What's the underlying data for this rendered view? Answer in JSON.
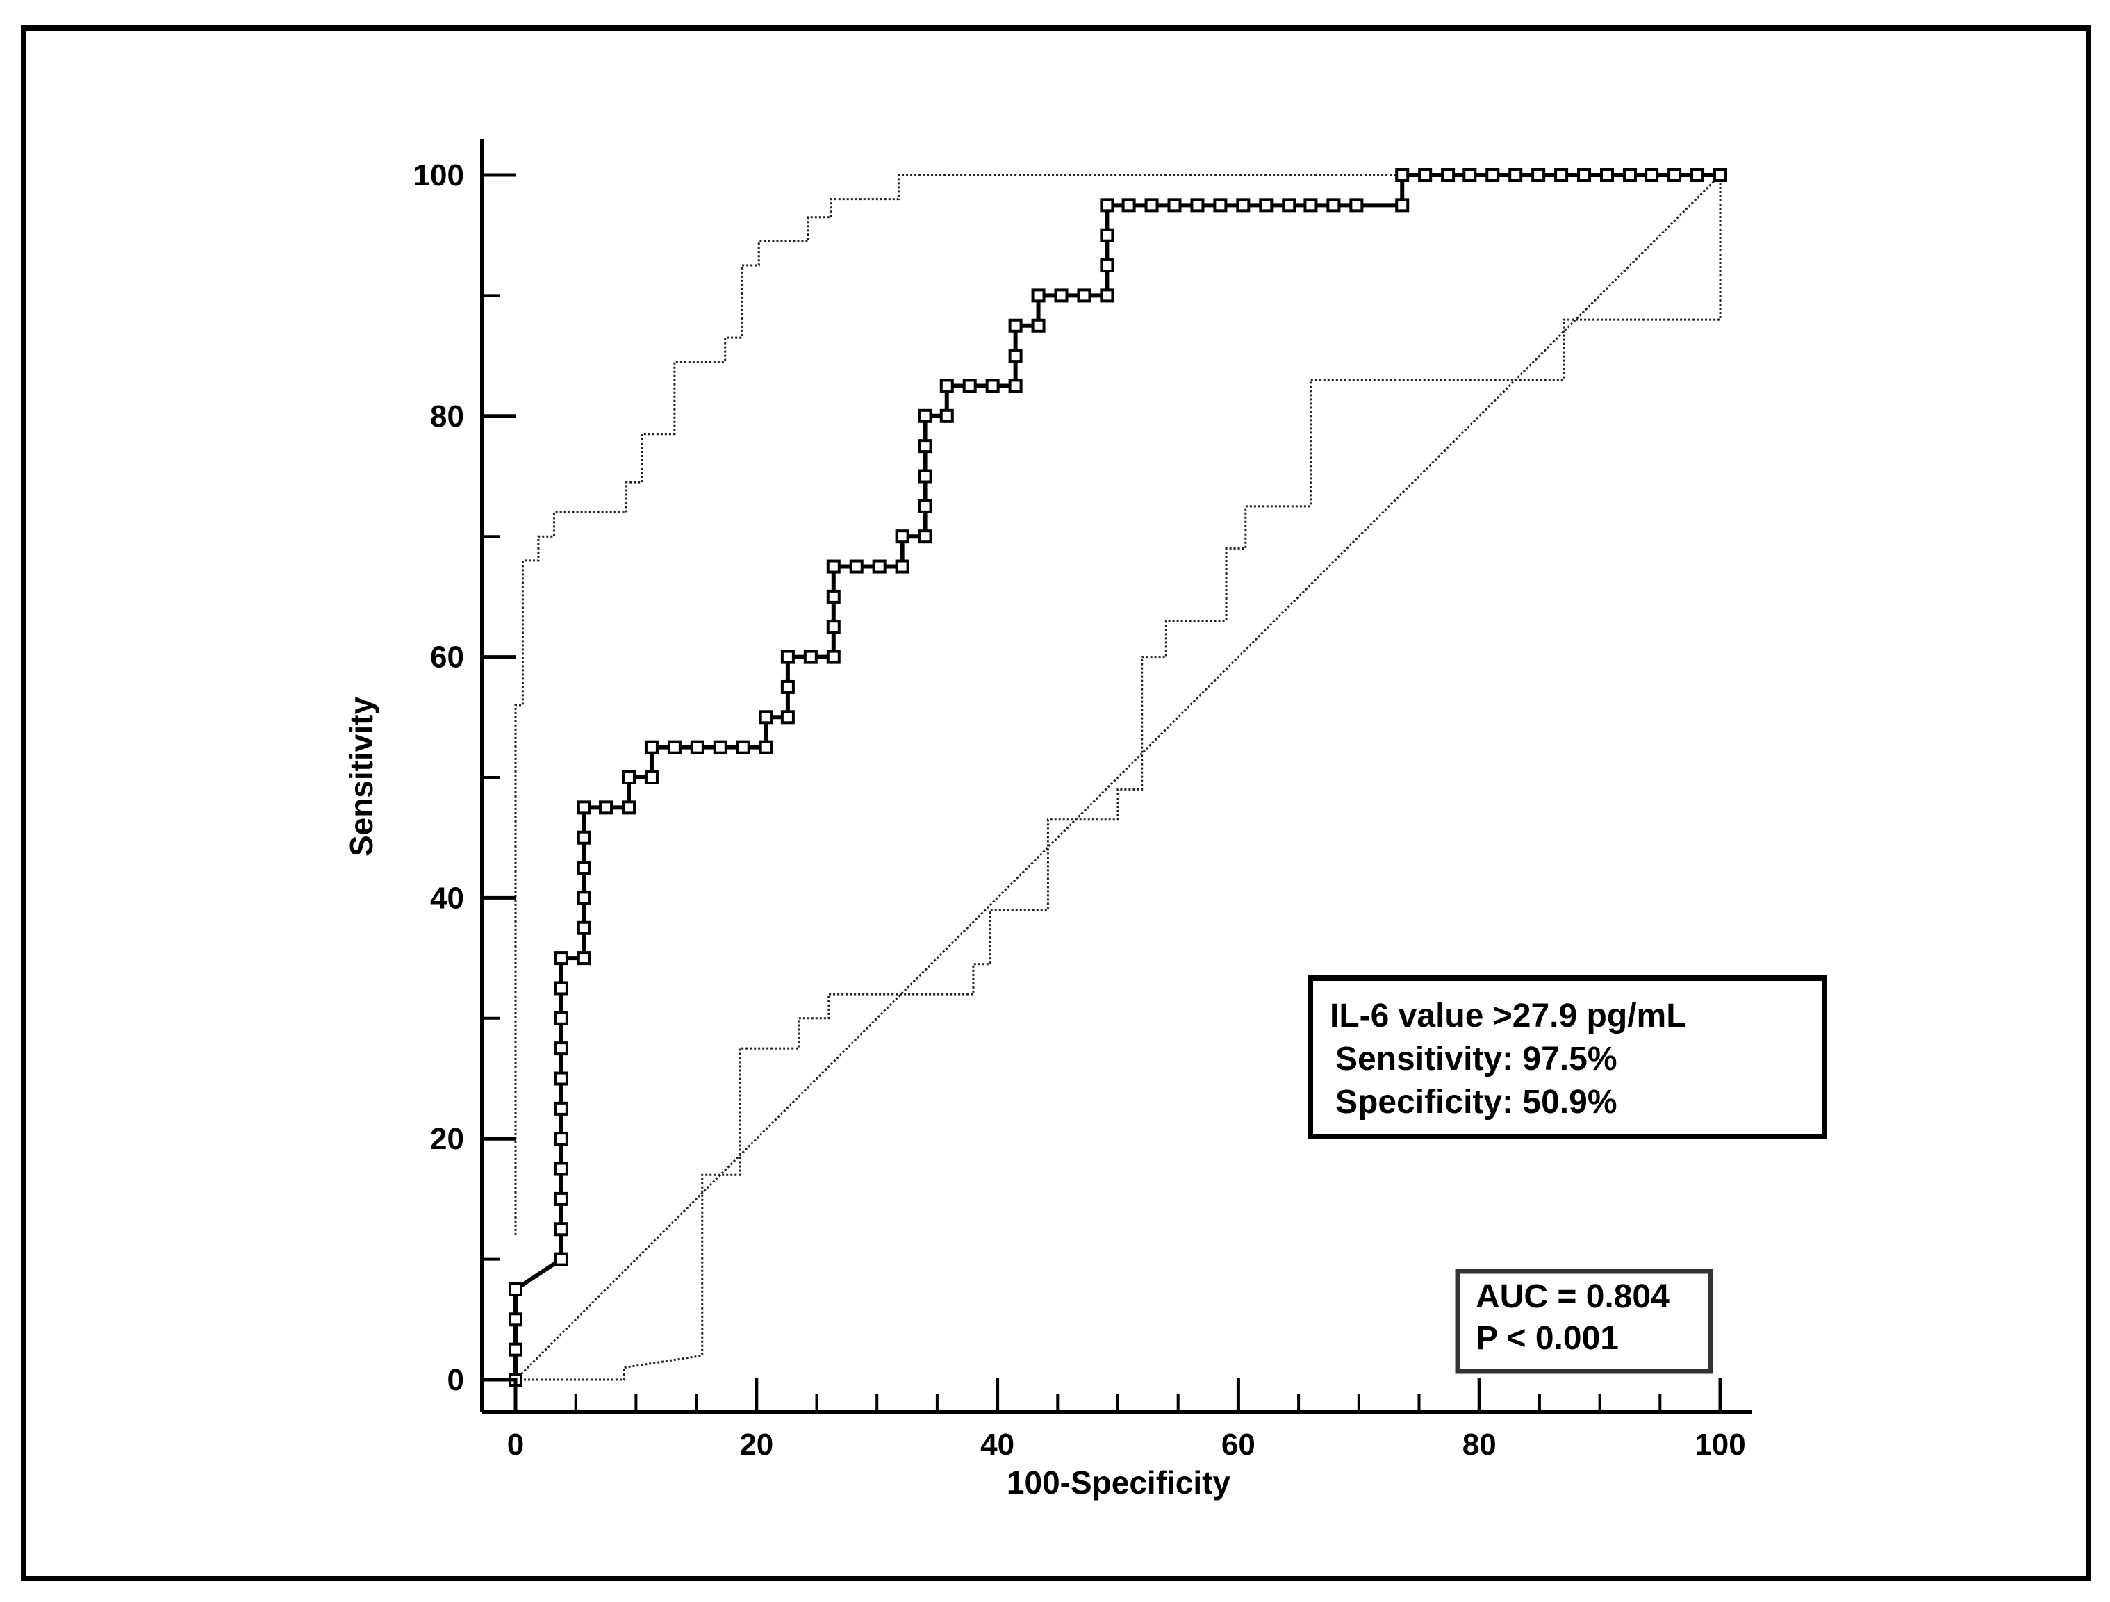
{
  "chart_data": {
    "type": "line",
    "title": "",
    "xlabel": "100-Specificity",
    "ylabel": "Sensitivity",
    "xlim": [
      0,
      100
    ],
    "ylim": [
      0,
      100
    ],
    "x_ticks": [
      0,
      20,
      40,
      60,
      80,
      100
    ],
    "y_ticks": [
      0,
      20,
      40,
      60,
      80,
      100
    ],
    "grid": false,
    "series": [
      {
        "role": "roc",
        "style": "solid-square-markers",
        "points": [
          [
            0,
            0
          ],
          [
            0,
            2.5
          ],
          [
            0,
            5
          ],
          [
            0,
            7.5
          ],
          [
            3.8,
            10
          ],
          [
            3.8,
            12.5
          ],
          [
            3.8,
            15
          ],
          [
            3.8,
            17.5
          ],
          [
            3.8,
            20
          ],
          [
            3.8,
            22.5
          ],
          [
            3.8,
            25
          ],
          [
            3.8,
            27.5
          ],
          [
            3.8,
            30
          ],
          [
            3.8,
            32.5
          ],
          [
            3.8,
            35
          ],
          [
            5.7,
            35
          ],
          [
            5.7,
            37.5
          ],
          [
            5.7,
            40
          ],
          [
            5.7,
            42.5
          ],
          [
            5.7,
            45
          ],
          [
            5.7,
            47.5
          ],
          [
            7.5,
            47.5
          ],
          [
            9.4,
            47.5
          ],
          [
            9.4,
            50
          ],
          [
            11.3,
            50
          ],
          [
            11.3,
            52.5
          ],
          [
            13.2,
            52.5
          ],
          [
            15.1,
            52.5
          ],
          [
            17,
            52.5
          ],
          [
            18.9,
            52.5
          ],
          [
            20.8,
            52.5
          ],
          [
            20.8,
            55
          ],
          [
            22.6,
            55
          ],
          [
            22.6,
            57.5
          ],
          [
            22.6,
            60
          ],
          [
            24.5,
            60
          ],
          [
            26.4,
            60
          ],
          [
            26.4,
            62.5
          ],
          [
            26.4,
            65
          ],
          [
            26.4,
            67.5
          ],
          [
            28.3,
            67.5
          ],
          [
            30.2,
            67.5
          ],
          [
            32.1,
            67.5
          ],
          [
            32.1,
            70
          ],
          [
            34,
            70
          ],
          [
            34,
            72.5
          ],
          [
            34,
            75
          ],
          [
            34,
            77.5
          ],
          [
            34,
            80
          ],
          [
            35.8,
            80
          ],
          [
            35.8,
            82.5
          ],
          [
            37.7,
            82.5
          ],
          [
            39.6,
            82.5
          ],
          [
            41.5,
            82.5
          ],
          [
            41.5,
            85
          ],
          [
            41.5,
            87.5
          ],
          [
            43.4,
            87.5
          ],
          [
            43.4,
            90
          ],
          [
            45.3,
            90
          ],
          [
            47.2,
            90
          ],
          [
            49.1,
            90
          ],
          [
            49.1,
            92.5
          ],
          [
            49.1,
            95
          ],
          [
            49.1,
            97.5
          ],
          [
            50.9,
            97.5
          ],
          [
            52.8,
            97.5
          ],
          [
            54.7,
            97.5
          ],
          [
            56.6,
            97.5
          ],
          [
            58.5,
            97.5
          ],
          [
            60.4,
            97.5
          ],
          [
            62.3,
            97.5
          ],
          [
            64.2,
            97.5
          ],
          [
            66,
            97.5
          ],
          [
            67.9,
            97.5
          ],
          [
            69.8,
            97.5
          ],
          [
            73.6,
            97.5
          ],
          [
            73.6,
            100
          ],
          [
            75.5,
            100
          ],
          [
            77.4,
            100
          ],
          [
            79.2,
            100
          ],
          [
            81.1,
            100
          ],
          [
            83,
            100
          ],
          [
            84.9,
            100
          ],
          [
            86.8,
            100
          ],
          [
            88.7,
            100
          ],
          [
            90.6,
            100
          ],
          [
            92.5,
            100
          ],
          [
            94.3,
            100
          ],
          [
            96.2,
            100
          ],
          [
            98.1,
            100
          ],
          [
            100,
            100
          ]
        ]
      },
      {
        "role": "upper-confidence-bound",
        "style": "dotted",
        "points": [
          [
            0,
            12
          ],
          [
            0,
            56
          ],
          [
            0.6,
            56
          ],
          [
            0.6,
            68
          ],
          [
            1.9,
            68
          ],
          [
            1.9,
            70
          ],
          [
            3.2,
            70
          ],
          [
            3.2,
            72
          ],
          [
            9.2,
            72
          ],
          [
            9.2,
            74.5
          ],
          [
            10.5,
            74.5
          ],
          [
            10.5,
            78.5
          ],
          [
            13.2,
            78.5
          ],
          [
            13.2,
            84.5
          ],
          [
            17.4,
            84.5
          ],
          [
            17.4,
            86.5
          ],
          [
            18.8,
            86.5
          ],
          [
            18.8,
            92.5
          ],
          [
            20.2,
            92.5
          ],
          [
            20.2,
            94.5
          ],
          [
            24.3,
            94.5
          ],
          [
            24.3,
            96.5
          ],
          [
            26.2,
            96.5
          ],
          [
            26.2,
            98
          ],
          [
            31.8,
            98
          ],
          [
            31.8,
            100
          ],
          [
            100,
            100
          ]
        ]
      },
      {
        "role": "lower-confidence-bound",
        "style": "dotted",
        "points": [
          [
            0,
            0
          ],
          [
            9,
            0
          ],
          [
            9,
            1
          ],
          [
            15.5,
            2
          ],
          [
            15.5,
            17
          ],
          [
            18.6,
            17
          ],
          [
            18.6,
            27.5
          ],
          [
            23.5,
            27.5
          ],
          [
            23.5,
            30
          ],
          [
            26,
            30
          ],
          [
            26,
            32
          ],
          [
            38,
            32
          ],
          [
            38,
            34.5
          ],
          [
            39.4,
            34.5
          ],
          [
            39.4,
            39
          ],
          [
            44.2,
            39
          ],
          [
            44.2,
            46.5
          ],
          [
            50,
            46.5
          ],
          [
            50,
            49
          ],
          [
            52,
            49
          ],
          [
            52,
            60
          ],
          [
            54,
            60
          ],
          [
            54,
            63
          ],
          [
            59,
            63
          ],
          [
            59,
            69
          ],
          [
            60.6,
            69
          ],
          [
            60.6,
            72.5
          ],
          [
            66,
            72.5
          ],
          [
            66,
            83
          ],
          [
            87,
            83
          ],
          [
            87,
            88
          ],
          [
            100,
            88
          ],
          [
            100,
            100
          ]
        ]
      },
      {
        "role": "reference-diagonal",
        "style": "dotted",
        "points": [
          [
            0,
            0
          ],
          [
            100,
            100
          ]
        ]
      }
    ],
    "annotations": {
      "cutoff_box": {
        "line1": "IL-6 value >27.9 pg/mL",
        "line2": "Sensitivity: 97.5%",
        "line3": "Specificity: 50.9%"
      },
      "auc_box": {
        "line1": "AUC = 0.804",
        "line2": "P < 0.001"
      }
    }
  }
}
